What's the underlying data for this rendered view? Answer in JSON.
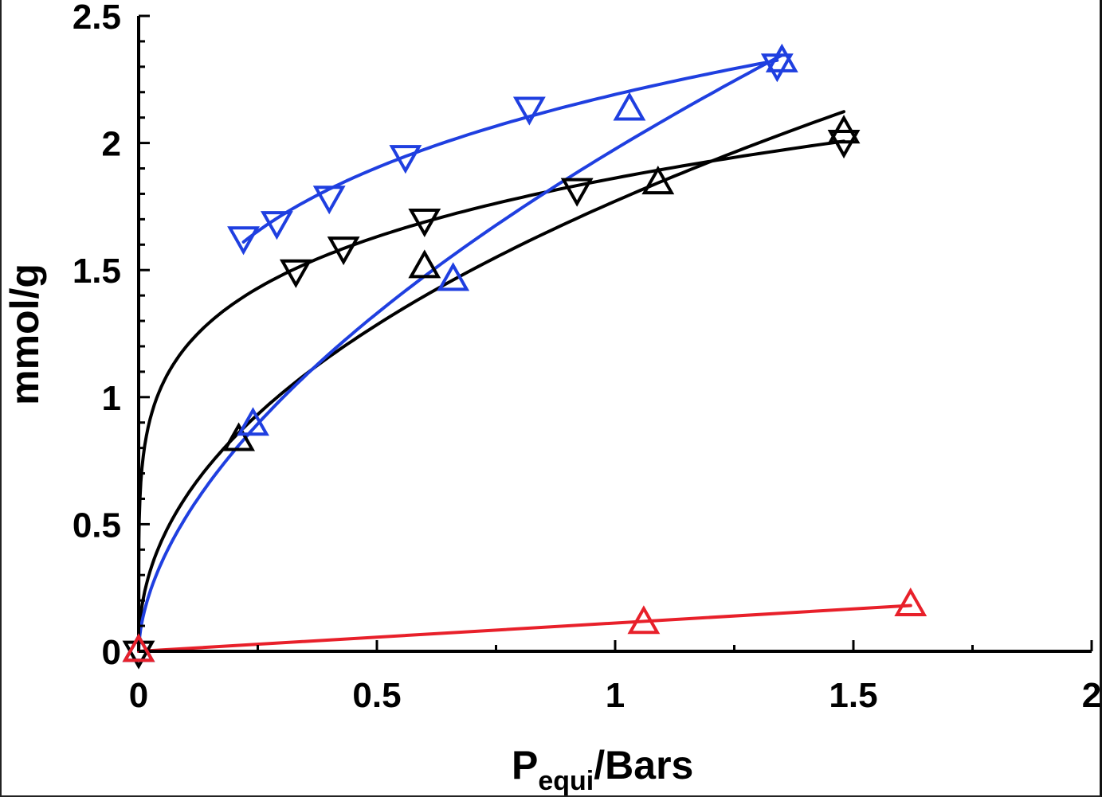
{
  "chart_data": {
    "type": "scatter",
    "title": "",
    "xlabel_main": "P",
    "xlabel_sub": "equi",
    "xlabel_rest": "/Bars",
    "ylabel": "mmol/g",
    "xlim": [
      0,
      2
    ],
    "ylim": [
      0,
      2.5
    ],
    "x_ticks": [
      0,
      0.5,
      1,
      1.5,
      2
    ],
    "x_tick_labels": [
      "0",
      "0.5",
      "1",
      "1.5",
      "2"
    ],
    "y_ticks": [
      0,
      0.5,
      1,
      1.5,
      2,
      2.5
    ],
    "y_tick_labels": [
      "0",
      "0.5",
      "1",
      "1.5",
      "2",
      "2.5"
    ],
    "grid": false,
    "series": [
      {
        "color": "#000000",
        "marker": "triangle-down",
        "x": [
          0,
          0.33,
          0.43,
          0.6,
          0.92,
          1.48
        ],
        "y": [
          0,
          1.5,
          1.59,
          1.7,
          1.82,
          2.01
        ]
      },
      {
        "color": "#000000",
        "marker": "triangle-up",
        "x": [
          0,
          0.21,
          0.6,
          1.09,
          1.48
        ],
        "y": [
          0,
          0.83,
          1.51,
          1.84,
          2.04
        ]
      },
      {
        "color": "#1f3fe0",
        "marker": "triangle-down",
        "x": [
          0.22,
          0.29,
          0.4,
          0.56,
          0.82,
          1.34
        ],
        "y": [
          1.63,
          1.69,
          1.79,
          1.95,
          2.14,
          2.31
        ]
      },
      {
        "color": "#1f3fe0",
        "marker": "triangle-up",
        "x": [
          0,
          0.24,
          0.66,
          1.03,
          1.35
        ],
        "y": [
          0,
          0.89,
          1.46,
          2.13,
          2.32
        ]
      },
      {
        "color": "#e8202a",
        "marker": "triangle-up",
        "x": [
          0,
          1.06,
          1.62
        ],
        "y": [
          0,
          0.11,
          0.18
        ]
      }
    ]
  }
}
